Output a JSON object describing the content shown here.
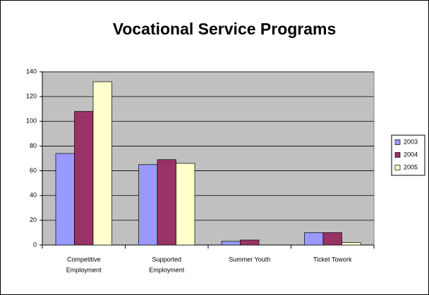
{
  "chart_data": {
    "type": "bar",
    "title": "Vocational Service Programs",
    "categories": [
      [
        "Competitive",
        "Employment"
      ],
      [
        "Supported",
        "Employment"
      ],
      [
        "Summer Youth"
      ],
      [
        "Ticket Towork"
      ]
    ],
    "series": [
      {
        "name": "2003",
        "color": "#9999ff",
        "values": [
          74,
          65,
          3,
          10
        ]
      },
      {
        "name": "2004",
        "color": "#993366",
        "values": [
          108,
          69,
          4,
          10
        ]
      },
      {
        "name": "2005",
        "color": "#ffffcc",
        "values": [
          132,
          66,
          0,
          2
        ]
      }
    ],
    "ylim": [
      0,
      140
    ],
    "yticks": [
      0,
      20,
      40,
      60,
      80,
      100,
      120,
      140
    ],
    "grid": true,
    "legend": "right"
  }
}
